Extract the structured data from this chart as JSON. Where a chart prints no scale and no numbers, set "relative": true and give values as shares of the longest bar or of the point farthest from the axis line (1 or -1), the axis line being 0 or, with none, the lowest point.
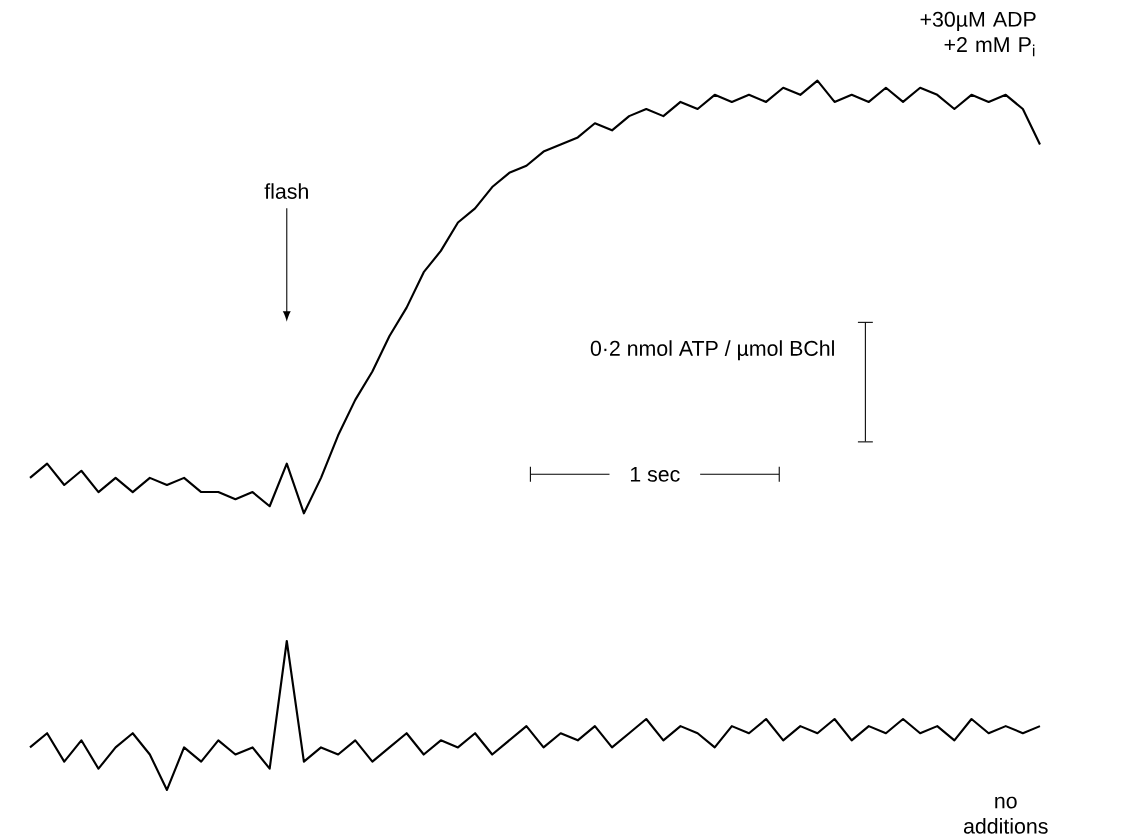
{
  "chart_data": {
    "type": "line",
    "relative": true,
    "categories": [
      null,
      null,
      null,
      null,
      null,
      null,
      null,
      null,
      null,
      null,
      null,
      null,
      null,
      null,
      null,
      null,
      null,
      null,
      null,
      null,
      null,
      null,
      null,
      null,
      null,
      null,
      null,
      null,
      null,
      null,
      null,
      null,
      null,
      null,
      null,
      null,
      null,
      null,
      null,
      null,
      null,
      null,
      null,
      null,
      null,
      null,
      null,
      null,
      null,
      null,
      null,
      null,
      null,
      null,
      null,
      null,
      null,
      null,
      null,
      null
    ],
    "series": [
      {
        "name": "+30µM ADP +2 mM P$_{i}$",
        "color": "#000000",
        "values": [
          0.44,
          0.46,
          0.43,
          0.45,
          0.42,
          0.44,
          0.42,
          0.44,
          0.43,
          0.44,
          0.42,
          0.42,
          0.41,
          0.42,
          0.4,
          0.46,
          0.39,
          0.44,
          0.5,
          0.55,
          0.59,
          0.64,
          0.68,
          0.73,
          0.76,
          0.8,
          0.82,
          0.85,
          0.87,
          0.88,
          0.9,
          0.91,
          0.92,
          0.94,
          0.93,
          0.95,
          0.96,
          0.95,
          0.97,
          0.96,
          0.98,
          0.97,
          0.98,
          0.97,
          0.99,
          0.98,
          1.0,
          0.97,
          0.98,
          0.97,
          0.99,
          0.97,
          0.99,
          0.98,
          0.96,
          0.98,
          0.97,
          0.98,
          0.96,
          0.91
        ]
      },
      {
        "name": "no additions",
        "color": "#000000",
        "values": [
          0.06,
          0.08,
          0.04,
          0.07,
          0.03,
          0.06,
          0.08,
          0.05,
          0.0,
          0.06,
          0.04,
          0.07,
          0.05,
          0.06,
          0.03,
          0.21,
          0.04,
          0.06,
          0.05,
          0.07,
          0.04,
          0.06,
          0.08,
          0.05,
          0.07,
          0.06,
          0.08,
          0.05,
          0.07,
          0.09,
          0.06,
          0.08,
          0.07,
          0.09,
          0.06,
          0.08,
          0.1,
          0.07,
          0.09,
          0.08,
          0.06,
          0.09,
          0.08,
          0.1,
          0.07,
          0.09,
          0.08,
          0.1,
          0.07,
          0.09,
          0.08,
          0.1,
          0.08,
          0.09,
          0.07,
          0.1,
          0.08,
          0.09,
          0.08,
          0.09
        ]
      }
    ],
    "annotations": [
      "flash",
      "0·2 nmol ATP / µmol BChl",
      "1 sec"
    ]
  }
}
